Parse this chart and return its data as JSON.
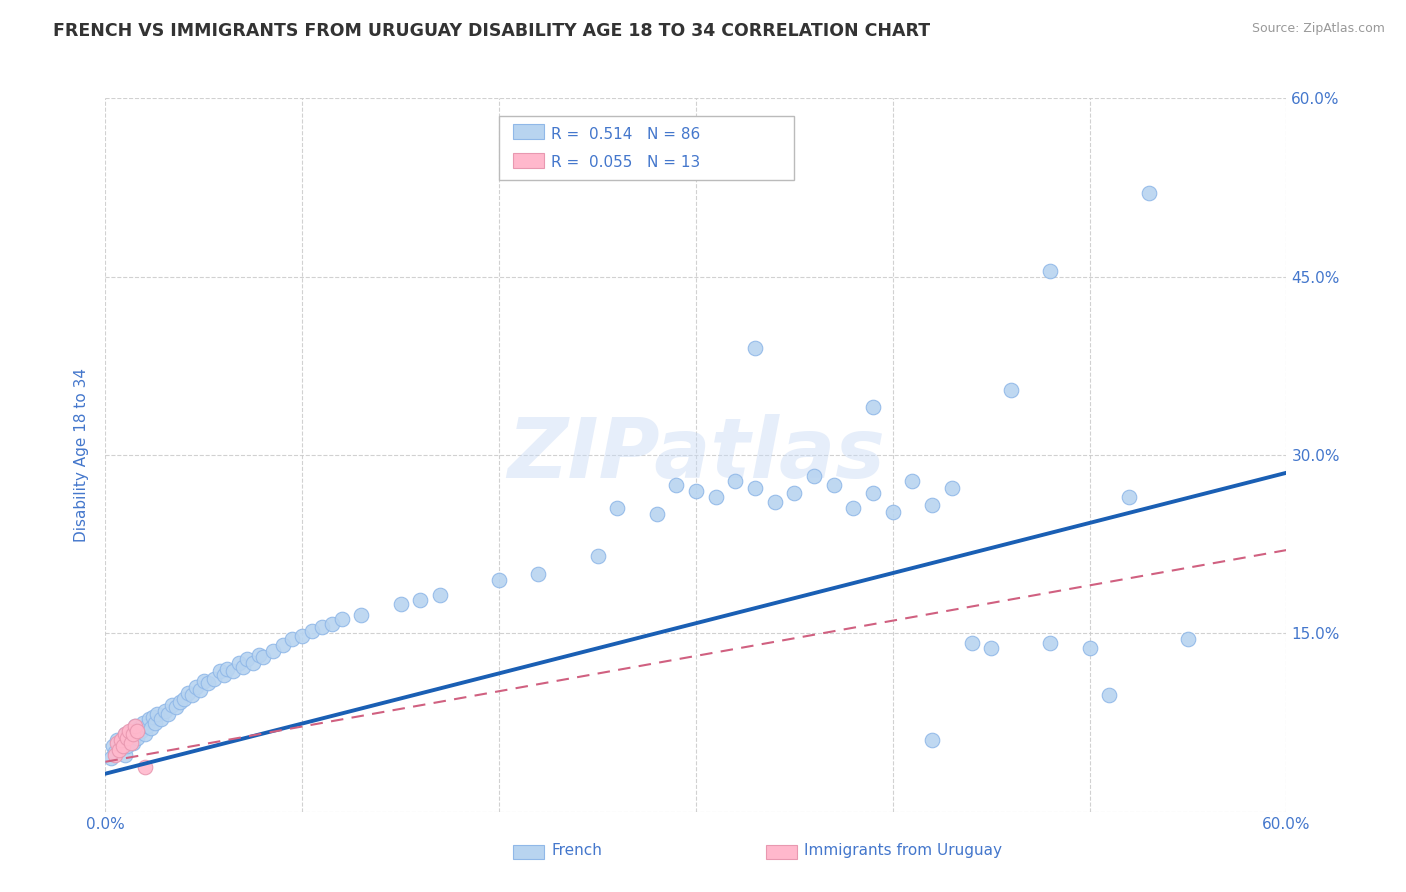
{
  "title": "FRENCH VS IMMIGRANTS FROM URUGUAY DISABILITY AGE 18 TO 34 CORRELATION CHART",
  "source": "Source: ZipAtlas.com",
  "ylabel": "Disability Age 18 to 34",
  "xlim": [
    0.0,
    0.6
  ],
  "ylim": [
    0.0,
    0.6
  ],
  "grid_color": "#cccccc",
  "watermark": "ZIPatlas",
  "french_color": "#b8d4f0",
  "french_edge_color": "#90b8e8",
  "french_line_color": "#1a5fb4",
  "uruguay_color": "#ffb8cc",
  "uruguay_edge_color": "#e898b0",
  "uruguay_line_color": "#d06080",
  "tick_label_color": "#4477cc",
  "ylabel_color": "#4477cc",
  "background_color": "#ffffff",
  "french_line_x": [
    0.0,
    0.6
  ],
  "french_line_y": [
    0.032,
    0.285
  ],
  "uruguay_line_x": [
    0.0,
    0.6
  ],
  "uruguay_line_y": [
    0.042,
    0.22
  ],
  "french_scatter": [
    [
      0.003,
      0.045
    ],
    [
      0.004,
      0.055
    ],
    [
      0.005,
      0.05
    ],
    [
      0.006,
      0.06
    ],
    [
      0.007,
      0.052
    ],
    [
      0.008,
      0.058
    ],
    [
      0.009,
      0.062
    ],
    [
      0.01,
      0.048
    ],
    [
      0.01,
      0.065
    ],
    [
      0.011,
      0.055
    ],
    [
      0.012,
      0.06
    ],
    [
      0.013,
      0.068
    ],
    [
      0.014,
      0.058
    ],
    [
      0.015,
      0.065
    ],
    [
      0.015,
      0.072
    ],
    [
      0.016,
      0.062
    ],
    [
      0.017,
      0.07
    ],
    [
      0.018,
      0.068
    ],
    [
      0.019,
      0.075
    ],
    [
      0.02,
      0.065
    ],
    [
      0.021,
      0.072
    ],
    [
      0.022,
      0.078
    ],
    [
      0.023,
      0.07
    ],
    [
      0.024,
      0.08
    ],
    [
      0.025,
      0.075
    ],
    [
      0.026,
      0.082
    ],
    [
      0.028,
      0.078
    ],
    [
      0.03,
      0.085
    ],
    [
      0.032,
      0.082
    ],
    [
      0.034,
      0.09
    ],
    [
      0.036,
      0.088
    ],
    [
      0.038,
      0.092
    ],
    [
      0.04,
      0.095
    ],
    [
      0.042,
      0.1
    ],
    [
      0.044,
      0.098
    ],
    [
      0.046,
      0.105
    ],
    [
      0.048,
      0.102
    ],
    [
      0.05,
      0.11
    ],
    [
      0.052,
      0.108
    ],
    [
      0.055,
      0.112
    ],
    [
      0.058,
      0.118
    ],
    [
      0.06,
      0.115
    ],
    [
      0.062,
      0.12
    ],
    [
      0.065,
      0.118
    ],
    [
      0.068,
      0.125
    ],
    [
      0.07,
      0.122
    ],
    [
      0.072,
      0.128
    ],
    [
      0.075,
      0.125
    ],
    [
      0.078,
      0.132
    ],
    [
      0.08,
      0.13
    ],
    [
      0.085,
      0.135
    ],
    [
      0.09,
      0.14
    ],
    [
      0.095,
      0.145
    ],
    [
      0.1,
      0.148
    ],
    [
      0.105,
      0.152
    ],
    [
      0.11,
      0.155
    ],
    [
      0.115,
      0.158
    ],
    [
      0.12,
      0.162
    ],
    [
      0.13,
      0.165
    ],
    [
      0.15,
      0.175
    ],
    [
      0.16,
      0.178
    ],
    [
      0.17,
      0.182
    ],
    [
      0.2,
      0.195
    ],
    [
      0.22,
      0.2
    ],
    [
      0.25,
      0.215
    ],
    [
      0.26,
      0.255
    ],
    [
      0.28,
      0.25
    ],
    [
      0.29,
      0.275
    ],
    [
      0.3,
      0.27
    ],
    [
      0.31,
      0.265
    ],
    [
      0.32,
      0.278
    ],
    [
      0.33,
      0.272
    ],
    [
      0.34,
      0.26
    ],
    [
      0.35,
      0.268
    ],
    [
      0.36,
      0.282
    ],
    [
      0.37,
      0.275
    ],
    [
      0.38,
      0.255
    ],
    [
      0.39,
      0.268
    ],
    [
      0.4,
      0.252
    ],
    [
      0.41,
      0.278
    ],
    [
      0.42,
      0.258
    ],
    [
      0.43,
      0.272
    ],
    [
      0.44,
      0.142
    ],
    [
      0.45,
      0.138
    ],
    [
      0.48,
      0.142
    ],
    [
      0.5,
      0.138
    ],
    [
      0.51,
      0.098
    ],
    [
      0.52,
      0.265
    ],
    [
      0.46,
      0.355
    ],
    [
      0.55,
      0.145
    ],
    [
      0.39,
      0.34
    ],
    [
      0.33,
      0.39
    ],
    [
      0.48,
      0.455
    ],
    [
      0.53,
      0.52
    ],
    [
      0.42,
      0.06
    ]
  ],
  "uruguay_scatter": [
    [
      0.005,
      0.048
    ],
    [
      0.006,
      0.058
    ],
    [
      0.007,
      0.052
    ],
    [
      0.008,
      0.06
    ],
    [
      0.009,
      0.055
    ],
    [
      0.01,
      0.065
    ],
    [
      0.011,
      0.062
    ],
    [
      0.012,
      0.068
    ],
    [
      0.013,
      0.058
    ],
    [
      0.014,
      0.065
    ],
    [
      0.015,
      0.072
    ],
    [
      0.016,
      0.068
    ],
    [
      0.02,
      0.038
    ]
  ]
}
